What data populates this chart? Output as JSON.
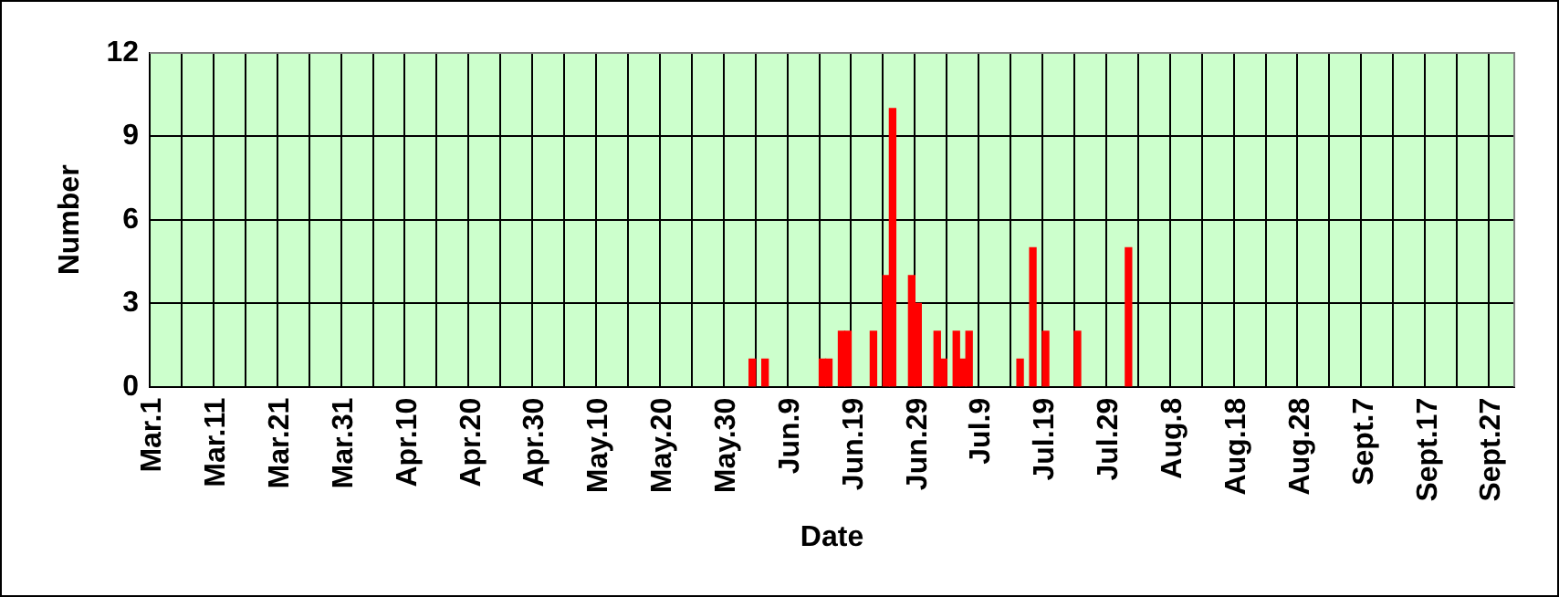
{
  "chart_data": {
    "type": "bar",
    "xlabel": "Date",
    "ylabel": "Number",
    "categories": [
      "Mar.1",
      null,
      null,
      null,
      null,
      null,
      null,
      null,
      null,
      null,
      "Mar.11",
      null,
      null,
      null,
      null,
      null,
      null,
      null,
      null,
      null,
      "Mar.21",
      null,
      null,
      null,
      null,
      null,
      null,
      null,
      null,
      null,
      "Mar.31",
      null,
      null,
      null,
      null,
      null,
      null,
      null,
      null,
      null,
      "Apr.10",
      null,
      null,
      null,
      null,
      null,
      null,
      null,
      null,
      null,
      "Apr.20",
      null,
      null,
      null,
      null,
      null,
      null,
      null,
      null,
      null,
      "Apr.30",
      null,
      null,
      null,
      null,
      null,
      null,
      null,
      null,
      null,
      "May.10",
      null,
      null,
      null,
      null,
      null,
      null,
      null,
      null,
      null,
      "May.20",
      null,
      null,
      null,
      null,
      null,
      null,
      null,
      null,
      null,
      "May.30",
      null,
      null,
      null,
      null,
      null,
      null,
      null,
      null,
      null,
      "Jun.9",
      null,
      null,
      null,
      null,
      null,
      null,
      null,
      null,
      null,
      "Jun.19",
      null,
      null,
      null,
      null,
      null,
      null,
      null,
      null,
      null,
      "Jun.29",
      null,
      null,
      null,
      null,
      null,
      null,
      null,
      null,
      null,
      "Jul.9",
      null,
      null,
      null,
      null,
      null,
      null,
      null,
      null,
      null,
      "Jul.19",
      null,
      null,
      null,
      null,
      null,
      null,
      null,
      null,
      null,
      "Jul.29",
      null,
      null,
      null,
      null,
      null,
      null,
      null,
      null,
      null,
      "Aug.8",
      null,
      null,
      null,
      null,
      null,
      null,
      null,
      null,
      null,
      "Aug.18",
      null,
      null,
      null,
      null,
      null,
      null,
      null,
      null,
      null,
      "Aug.28",
      null,
      null,
      null,
      null,
      null,
      null,
      null,
      null,
      null,
      "Sept.7",
      null,
      null,
      null,
      null,
      null,
      null,
      null,
      null,
      null,
      "Sept.17",
      null,
      null,
      null,
      null,
      null,
      null,
      null,
      null,
      null,
      "Sept.27",
      null,
      null,
      null
    ],
    "values": [
      null,
      null,
      null,
      null,
      null,
      null,
      null,
      null,
      null,
      null,
      null,
      null,
      null,
      null,
      null,
      null,
      null,
      null,
      null,
      null,
      null,
      null,
      null,
      null,
      null,
      null,
      null,
      null,
      null,
      null,
      null,
      null,
      null,
      null,
      null,
      null,
      null,
      null,
      null,
      null,
      null,
      null,
      null,
      null,
      null,
      null,
      null,
      null,
      null,
      null,
      null,
      null,
      null,
      null,
      null,
      null,
      null,
      null,
      null,
      null,
      null,
      null,
      null,
      null,
      null,
      null,
      null,
      null,
      null,
      null,
      null,
      null,
      null,
      null,
      null,
      null,
      null,
      null,
      null,
      null,
      null,
      null,
      null,
      null,
      null,
      null,
      null,
      null,
      null,
      null,
      null,
      null,
      null,
      null,
      1,
      null,
      1,
      null,
      null,
      null,
      null,
      null,
      null,
      null,
      null,
      1,
      1,
      null,
      2,
      2,
      null,
      null,
      null,
      2,
      null,
      4,
      10,
      null,
      null,
      4,
      3,
      null,
      null,
      2,
      1,
      null,
      2,
      1,
      2,
      null,
      null,
      null,
      null,
      null,
      null,
      null,
      1,
      null,
      5,
      null,
      2,
      null,
      null,
      null,
      null,
      2,
      null,
      null,
      null,
      null,
      null,
      null,
      null,
      5,
      null,
      null,
      null,
      null,
      null,
      null,
      null,
      null,
      null,
      null,
      null,
      null,
      null,
      null,
      null,
      null,
      null,
      null,
      null,
      null,
      null,
      null,
      null,
      null,
      null,
      null,
      null,
      null,
      null,
      null,
      null,
      null,
      null,
      null,
      null,
      null,
      null,
      null,
      null,
      null,
      null,
      null,
      null,
      null,
      null,
      null,
      null,
      null,
      null,
      null,
      null,
      null,
      null,
      null,
      null,
      null,
      null,
      null,
      null,
      null
    ],
    "color": "#ff0000",
    "ylim": [
      0,
      12
    ],
    "yticks": [
      0,
      3,
      6,
      9,
      12
    ],
    "grid": true,
    "legend": false
  }
}
